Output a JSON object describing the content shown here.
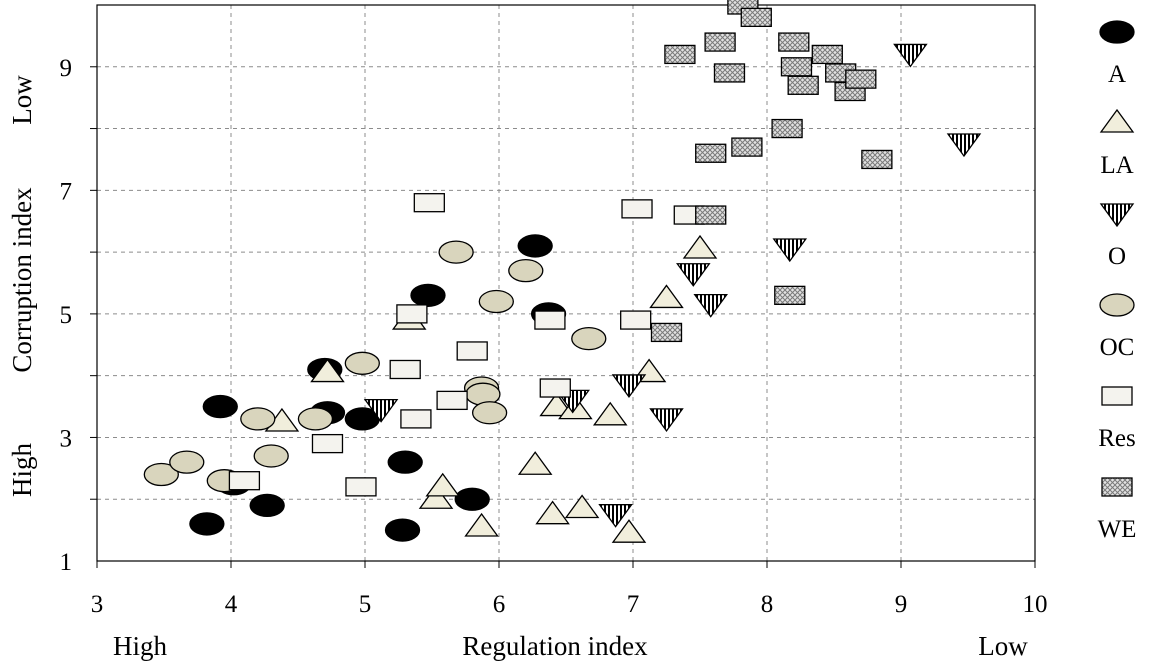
{
  "chart_data": {
    "type": "scatter",
    "title": "",
    "xlabel": "Regulation index",
    "ylabel": "Corruption index",
    "x_end_labels": {
      "left": "High",
      "right": "Low"
    },
    "y_end_labels": {
      "bottom": "High",
      "top": "Low"
    },
    "xlim": [
      3,
      10
    ],
    "ylim": [
      1,
      10
    ],
    "xticks": [
      "3",
      "4",
      "5",
      "6",
      "7",
      "8",
      "9",
      "10"
    ],
    "yticks": [
      "1",
      "3",
      "5",
      "7",
      "9"
    ],
    "grid": true,
    "legend_position": "right",
    "series": [
      {
        "name": "A",
        "marker": "circle",
        "color": "#000000",
        "points": [
          [
            3.82,
            1.6
          ],
          [
            3.92,
            3.5
          ],
          [
            4.02,
            2.25
          ],
          [
            4.27,
            1.9
          ],
          [
            4.7,
            4.1
          ],
          [
            4.72,
            3.4
          ],
          [
            4.98,
            3.3
          ],
          [
            5.28,
            1.5
          ],
          [
            5.3,
            2.6
          ],
          [
            5.47,
            5.3
          ],
          [
            5.8,
            2.0
          ],
          [
            6.27,
            6.1
          ],
          [
            6.37,
            5.0
          ]
        ]
      },
      {
        "name": "LA",
        "marker": "triangle",
        "color": "#f1eedc",
        "points": [
          [
            4.38,
            3.25
          ],
          [
            4.72,
            4.05
          ],
          [
            5.33,
            4.9
          ],
          [
            5.53,
            2.0
          ],
          [
            5.58,
            2.2
          ],
          [
            5.87,
            1.55
          ],
          [
            6.27,
            2.55
          ],
          [
            6.4,
            1.75
          ],
          [
            6.43,
            3.5
          ],
          [
            6.57,
            3.45
          ],
          [
            6.62,
            1.85
          ],
          [
            6.83,
            3.35
          ],
          [
            6.97,
            1.45
          ],
          [
            7.12,
            4.05
          ],
          [
            7.25,
            5.25
          ],
          [
            7.5,
            6.05
          ]
        ]
      },
      {
        "name": "O",
        "marker": "triangle-down",
        "color": "#ffffff",
        "points": [
          [
            5.12,
            3.45
          ],
          [
            6.55,
            3.6
          ],
          [
            6.87,
            1.75
          ],
          [
            6.97,
            3.85
          ],
          [
            7.25,
            3.3
          ],
          [
            7.45,
            5.65
          ],
          [
            7.58,
            5.15
          ],
          [
            8.17,
            6.05
          ],
          [
            9.07,
            9.2
          ],
          [
            9.47,
            7.75
          ]
        ]
      },
      {
        "name": "OC",
        "marker": "circle",
        "color": "#d9d5bd",
        "points": [
          [
            3.48,
            2.4
          ],
          [
            3.67,
            2.6
          ],
          [
            3.95,
            2.3
          ],
          [
            4.2,
            3.3
          ],
          [
            4.3,
            2.7
          ],
          [
            4.63,
            3.3
          ],
          [
            4.98,
            4.2
          ],
          [
            5.68,
            6.0
          ],
          [
            5.87,
            3.8
          ],
          [
            5.88,
            3.7
          ],
          [
            5.93,
            3.4
          ],
          [
            5.98,
            5.2
          ],
          [
            6.2,
            5.7
          ],
          [
            6.67,
            4.6
          ]
        ]
      },
      {
        "name": "Res",
        "marker": "square",
        "color": "#f4f3ee",
        "points": [
          [
            4.1,
            2.3
          ],
          [
            4.72,
            2.9
          ],
          [
            4.97,
            2.2
          ],
          [
            5.3,
            4.1
          ],
          [
            5.35,
            5.0
          ],
          [
            5.38,
            3.3
          ],
          [
            5.48,
            6.8
          ],
          [
            5.65,
            3.6
          ],
          [
            5.8,
            4.4
          ],
          [
            6.38,
            4.9
          ],
          [
            6.42,
            3.8
          ],
          [
            7.02,
            4.9
          ],
          [
            7.03,
            6.7
          ],
          [
            7.42,
            6.6
          ]
        ]
      },
      {
        "name": "WE",
        "marker": "square-hatched",
        "color": "#c8c8c8",
        "points": [
          [
            7.35,
            9.2
          ],
          [
            7.25,
            4.7
          ],
          [
            7.58,
            7.6
          ],
          [
            7.58,
            6.6
          ],
          [
            7.65,
            9.4
          ],
          [
            7.72,
            8.9
          ],
          [
            7.85,
            7.7
          ],
          [
            7.82,
            10.0
          ],
          [
            7.92,
            9.8
          ],
          [
            8.15,
            8.0
          ],
          [
            8.17,
            5.3
          ],
          [
            8.2,
            9.4
          ],
          [
            8.22,
            9.0
          ],
          [
            8.27,
            8.7
          ],
          [
            8.45,
            9.2
          ],
          [
            8.55,
            8.9
          ],
          [
            8.62,
            8.6
          ],
          [
            8.7,
            8.8
          ],
          [
            8.82,
            7.5
          ]
        ]
      }
    ]
  }
}
